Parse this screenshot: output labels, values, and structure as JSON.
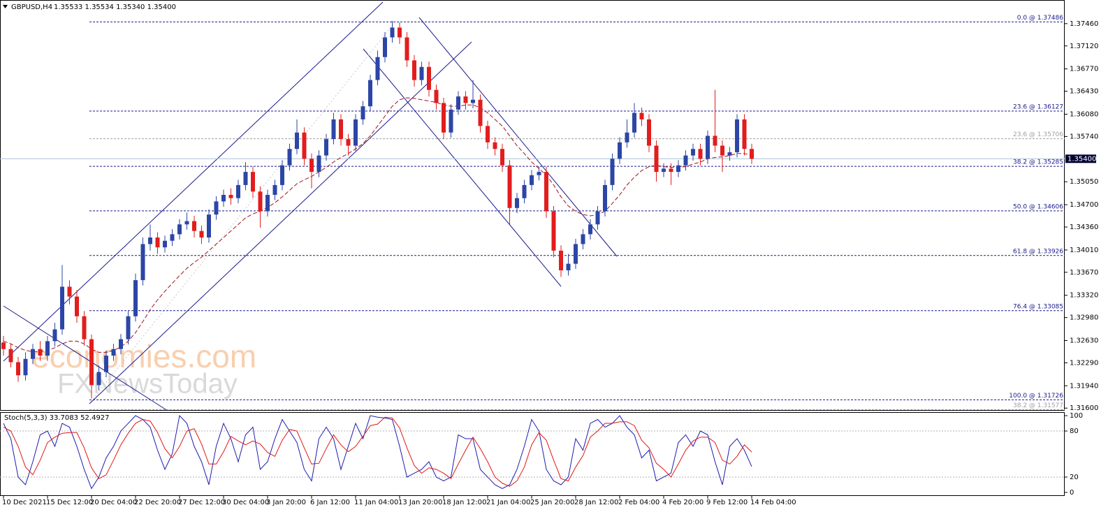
{
  "header": {
    "symbol": "GBPUSD,H4",
    "ohlc": "1.35533 1.35534 1.35340 1.35400"
  },
  "chart_data": [
    {
      "type": "candlestick",
      "categories": [
        "10 Dec 2021",
        null,
        null,
        null,
        null,
        null,
        "15 Dec 12:00",
        null,
        null,
        null,
        null,
        null,
        "20 Dec 04:00",
        null,
        null,
        null,
        null,
        null,
        "22 Dec 20:00",
        null,
        null,
        null,
        null,
        null,
        "27 Dec 12:00",
        null,
        null,
        null,
        null,
        null,
        "30 Dec 04:00",
        null,
        null,
        null,
        null,
        null,
        "3 Jan 20:00",
        null,
        null,
        null,
        null,
        null,
        "6 Jan 12:00",
        null,
        null,
        null,
        null,
        null,
        "11 Jan 04:00",
        null,
        null,
        null,
        null,
        null,
        "13 Jan 20:00",
        null,
        null,
        null,
        null,
        null,
        "18 Jan 12:00",
        null,
        null,
        null,
        null,
        null,
        "21 Jan 04:00",
        null,
        null,
        null,
        null,
        null,
        "25 Jan 20:00",
        null,
        null,
        null,
        null,
        null,
        "28 Jan 12:00",
        null,
        null,
        null,
        null,
        null,
        "2 Feb 04:00",
        null,
        null,
        null,
        null,
        null,
        "4 Feb 20:00",
        null,
        null,
        null,
        null,
        null,
        "9 Feb 12:00",
        null,
        null,
        null,
        null,
        null,
        "14 Feb 04:00"
      ],
      "open": [
        1.326,
        1.325,
        1.323,
        1.321,
        1.3235,
        1.325,
        1.324,
        1.3262,
        1.328,
        1.3345,
        1.333,
        1.33,
        1.3265,
        1.3195,
        1.3215,
        1.324,
        1.325,
        1.3265,
        1.33,
        1.3355,
        1.341,
        1.342,
        1.3405,
        1.3415,
        1.3425,
        1.344,
        1.3445,
        1.343,
        1.342,
        1.3455,
        1.3475,
        1.3485,
        1.348,
        1.35,
        1.352,
        1.349,
        1.346,
        1.3485,
        1.35,
        1.353,
        1.3555,
        1.358,
        1.354,
        1.352,
        1.3545,
        1.357,
        1.36,
        1.357,
        1.356,
        1.36,
        1.362,
        1.366,
        1.3695,
        1.3725,
        1.374,
        1.3725,
        1.369,
        1.366,
        1.368,
        1.3645,
        1.3625,
        1.358,
        1.3615,
        1.3635,
        1.3625,
        1.363,
        1.359,
        1.3565,
        1.3555,
        1.353,
        1.3465,
        1.348,
        1.35,
        1.3515,
        1.352,
        1.346,
        1.34,
        1.337,
        1.338,
        1.341,
        1.3425,
        1.344,
        1.346,
        1.35,
        1.354,
        1.3565,
        1.358,
        1.361,
        1.36,
        1.356,
        1.352,
        1.3525,
        1.352,
        1.353,
        1.3545,
        1.3555,
        1.354,
        1.3575,
        1.356,
        1.3545,
        1.355,
        1.36,
        1.3555
      ],
      "high": [
        1.327,
        1.3258,
        1.3238,
        1.3245,
        1.3258,
        1.3262,
        1.327,
        1.329,
        1.3378,
        1.3355,
        1.334,
        1.3308,
        1.3272,
        1.3225,
        1.3248,
        1.3258,
        1.3273,
        1.3308,
        1.3365,
        1.342,
        1.344,
        1.3428,
        1.3423,
        1.3433,
        1.3448,
        1.3458,
        1.3453,
        1.3438,
        1.3463,
        1.3483,
        1.3493,
        1.3495,
        1.3508,
        1.3535,
        1.3528,
        1.3498,
        1.3493,
        1.3508,
        1.3538,
        1.3563,
        1.36,
        1.3588,
        1.3548,
        1.3553,
        1.3578,
        1.361,
        1.3608,
        1.3578,
        1.3608,
        1.3628,
        1.3668,
        1.3705,
        1.3733,
        1.375,
        1.3748,
        1.3733,
        1.3698,
        1.3688,
        1.3688,
        1.3653,
        1.3633,
        1.3623,
        1.3643,
        1.3643,
        1.366,
        1.3638,
        1.3598,
        1.3573,
        1.3563,
        1.3538,
        1.3488,
        1.3508,
        1.3523,
        1.3528,
        1.3528,
        1.3468,
        1.3408,
        1.3395,
        1.3418,
        1.3433,
        1.3448,
        1.3468,
        1.3508,
        1.3548,
        1.3573,
        1.36,
        1.3625,
        1.3618,
        1.3608,
        1.3568,
        1.3533,
        1.3533,
        1.3538,
        1.3553,
        1.3563,
        1.3563,
        1.3583,
        1.3645,
        1.3568,
        1.3558,
        1.3608,
        1.3608,
        1.3563
      ],
      "low": [
        1.324,
        1.3222,
        1.32,
        1.3202,
        1.3227,
        1.3232,
        1.3232,
        1.3254,
        1.3272,
        1.3318,
        1.329,
        1.3255,
        1.3175,
        1.3187,
        1.3207,
        1.3232,
        1.3242,
        1.3257,
        1.3292,
        1.3347,
        1.34,
        1.3395,
        1.3397,
        1.3407,
        1.3417,
        1.3432,
        1.342,
        1.341,
        1.3412,
        1.3447,
        1.3467,
        1.347,
        1.3472,
        1.3492,
        1.348,
        1.3435,
        1.3452,
        1.3477,
        1.3492,
        1.3522,
        1.3547,
        1.353,
        1.3495,
        1.3512,
        1.3537,
        1.3562,
        1.356,
        1.3545,
        1.3552,
        1.3592,
        1.3612,
        1.3652,
        1.3687,
        1.3717,
        1.3715,
        1.368,
        1.365,
        1.3652,
        1.3635,
        1.3615,
        1.357,
        1.3572,
        1.3607,
        1.3615,
        1.3617,
        1.358,
        1.3555,
        1.3545,
        1.352,
        1.344,
        1.3457,
        1.3472,
        1.3492,
        1.3507,
        1.345,
        1.339,
        1.336,
        1.3362,
        1.3372,
        1.3402,
        1.3417,
        1.3432,
        1.3452,
        1.3492,
        1.3532,
        1.3557,
        1.3572,
        1.359,
        1.355,
        1.3505,
        1.3512,
        1.35,
        1.3512,
        1.3522,
        1.3537,
        1.353,
        1.3532,
        1.355,
        1.352,
        1.3537,
        1.3542,
        1.3545,
        1.3532
      ],
      "close": [
        1.325,
        1.323,
        1.321,
        1.3235,
        1.325,
        1.324,
        1.3262,
        1.328,
        1.3345,
        1.333,
        1.33,
        1.3265,
        1.3195,
        1.3215,
        1.324,
        1.325,
        1.3265,
        1.33,
        1.3355,
        1.341,
        1.342,
        1.3405,
        1.3415,
        1.3425,
        1.344,
        1.3445,
        1.343,
        1.342,
        1.3455,
        1.3475,
        1.3485,
        1.348,
        1.35,
        1.352,
        1.349,
        1.346,
        1.3485,
        1.35,
        1.353,
        1.3555,
        1.358,
        1.354,
        1.352,
        1.3545,
        1.357,
        1.36,
        1.357,
        1.356,
        1.36,
        1.362,
        1.366,
        1.3695,
        1.3725,
        1.374,
        1.3725,
        1.369,
        1.366,
        1.368,
        1.3645,
        1.3625,
        1.358,
        1.3615,
        1.3635,
        1.3625,
        1.363,
        1.359,
        1.3565,
        1.3555,
        1.353,
        1.3465,
        1.348,
        1.35,
        1.3515,
        1.352,
        1.346,
        1.34,
        1.337,
        1.338,
        1.341,
        1.3425,
        1.344,
        1.346,
        1.35,
        1.354,
        1.3565,
        1.358,
        1.361,
        1.36,
        1.356,
        1.352,
        1.3525,
        1.352,
        1.353,
        1.3545,
        1.3555,
        1.354,
        1.3575,
        1.356,
        1.3545,
        1.355,
        1.36,
        1.3555,
        1.354
      ],
      "up_color": "#2c46a6",
      "down_color": "#e21d1d",
      "moving_average": {
        "color": "#a3121a",
        "values": [
          1.3262,
          1.3258,
          1.3252,
          1.3248,
          1.3246,
          1.3246,
          1.3248,
          1.3252,
          1.3258,
          1.3262,
          1.3262,
          1.3258,
          1.325,
          1.3245,
          1.3245,
          1.3248,
          1.3253,
          1.3262,
          1.3275,
          1.3292,
          1.331,
          1.3325,
          1.3338,
          1.335,
          1.3362,
          1.3373,
          1.3382,
          1.339,
          1.34,
          1.341,
          1.342,
          1.343,
          1.344,
          1.345,
          1.3456,
          1.346,
          1.3466,
          1.3473,
          1.3482,
          1.3492,
          1.3502,
          1.3508,
          1.3513,
          1.352,
          1.3527,
          1.3535,
          1.3542,
          1.3548,
          1.3555,
          1.3563,
          1.3575,
          1.359,
          1.3605,
          1.362,
          1.363,
          1.3633,
          1.3632,
          1.363,
          1.3628,
          1.3626,
          1.3622,
          1.362,
          1.362,
          1.3622,
          1.3622,
          1.3618,
          1.361,
          1.36,
          1.359,
          1.3575,
          1.356,
          1.3548,
          1.3535,
          1.3525,
          1.3515,
          1.35,
          1.3482,
          1.3468,
          1.346,
          1.3455,
          1.3453,
          1.3455,
          1.346,
          1.3472,
          1.3485,
          1.35,
          1.3512,
          1.3522,
          1.3528,
          1.353,
          1.3528,
          1.3527,
          1.3527,
          1.3528,
          1.3532,
          1.3535,
          1.354,
          1.3542,
          1.3543,
          1.3545,
          1.3548,
          1.3548,
          1.3545
        ]
      },
      "ylim": [
        1.3156,
        1.3782
      ],
      "yticks": [
        {
          "value": 1.3746,
          "label": "1.37460"
        },
        {
          "value": 1.3712,
          "label": "1.37120"
        },
        {
          "value": 1.3677,
          "label": "1.36770"
        },
        {
          "value": 1.3643,
          "label": "1.36430"
        },
        {
          "value": 1.3608,
          "label": "1.36080"
        },
        {
          "value": 1.3574,
          "label": "1.35740"
        },
        {
          "value": 1.3505,
          "label": "1.35050"
        },
        {
          "value": 1.347,
          "label": "1.34700"
        },
        {
          "value": 1.3436,
          "label": "1.34360"
        },
        {
          "value": 1.3401,
          "label": "1.34010"
        },
        {
          "value": 1.3367,
          "label": "1.33670"
        },
        {
          "value": 1.3332,
          "label": "1.33320"
        },
        {
          "value": 1.3298,
          "label": "1.32980"
        },
        {
          "value": 1.3263,
          "label": "1.32630"
        },
        {
          "value": 1.3229,
          "label": "1.32290"
        },
        {
          "value": 1.3194,
          "label": "1.31940"
        },
        {
          "value": 1.316,
          "label": "1.31600"
        }
      ],
      "current_price": {
        "value": 1.354,
        "label": "1.35400"
      },
      "fib_levels": [
        {
          "value": 1.37486,
          "label": "0.0 @ 1.37486",
          "color": "#1a1a8c"
        },
        {
          "value": 1.36127,
          "label": "23.6 @ 1.36127",
          "color": "#1a1a8c"
        },
        {
          "value": 1.35706,
          "label": "23.6 @ 1.35706",
          "color": "#a0a0a0"
        },
        {
          "value": 1.35285,
          "label": "38.2 @ 1.35285",
          "color": "#1a1a8c"
        },
        {
          "value": 1.34606,
          "label": "50.0 @ 1.34606",
          "color": "#1a1a8c"
        },
        {
          "value": 1.33926,
          "label": "61.8 @ 1.33926",
          "color": "#1a1a8c"
        },
        {
          "value": 1.33085,
          "label": "76.4 @ 1.33085",
          "color": "#1a1a8c"
        },
        {
          "value": 1.31726,
          "label": "100.0 @ 1.31726",
          "color": "#1a1a8c"
        },
        {
          "value": 1.31577,
          "label": "38.2 @ 1.31577",
          "color": "#a0a0a0"
        }
      ],
      "watermark": [
        "economies.com",
        "FXNewsToday"
      ]
    },
    {
      "type": "line",
      "title": "Stoch(5,3,3) 33.7083 52.4927",
      "ylim": [
        -4.6,
        104.6
      ],
      "yticks": [
        100,
        80,
        20,
        0
      ],
      "levels": [
        80,
        20
      ],
      "series": [
        {
          "color": "#1c1cb0",
          "values": [
            90,
            70,
            20,
            10,
            40,
            75,
            80,
            60,
            90,
            85,
            60,
            30,
            5,
            20,
            45,
            60,
            80,
            90,
            100,
            95,
            85,
            55,
            30,
            50,
            100,
            90,
            60,
            40,
            10,
            60,
            90,
            70,
            40,
            75,
            85,
            30,
            40,
            70,
            95,
            80,
            65,
            30,
            15,
            70,
            85,
            70,
            30,
            60,
            90,
            70,
            100,
            98,
            97,
            95,
            60,
            20,
            25,
            30,
            40,
            20,
            15,
            20,
            75,
            70,
            70,
            30,
            20,
            10,
            5,
            10,
            30,
            60,
            95,
            80,
            30,
            15,
            10,
            20,
            70,
            55,
            90,
            95,
            85,
            90,
            100,
            85,
            75,
            45,
            55,
            15,
            20,
            25,
            65,
            75,
            60,
            80,
            75,
            40,
            10,
            60,
            70,
            55,
            33.7083
          ]
        },
        {
          "color": "#e01818",
          "values": [
            85,
            80,
            60,
            33,
            23,
            42,
            65,
            72,
            77,
            78,
            78,
            58,
            32,
            18,
            23,
            42,
            62,
            77,
            90,
            95,
            93,
            78,
            57,
            45,
            60,
            80,
            83,
            63,
            37,
            37,
            53,
            73,
            67,
            62,
            67,
            63,
            52,
            47,
            68,
            82,
            80,
            58,
            37,
            38,
            57,
            75,
            62,
            53,
            60,
            73,
            87,
            89,
            98,
            97,
            84,
            58,
            35,
            25,
            32,
            30,
            25,
            18,
            37,
            55,
            72,
            57,
            40,
            20,
            12,
            8,
            15,
            33,
            62,
            78,
            68,
            42,
            18,
            15,
            33,
            48,
            72,
            80,
            90,
            90,
            92,
            92,
            87,
            68,
            58,
            38,
            30,
            20,
            37,
            55,
            67,
            72,
            72,
            65,
            42,
            37,
            47,
            62,
            52.4927
          ]
        }
      ]
    }
  ]
}
